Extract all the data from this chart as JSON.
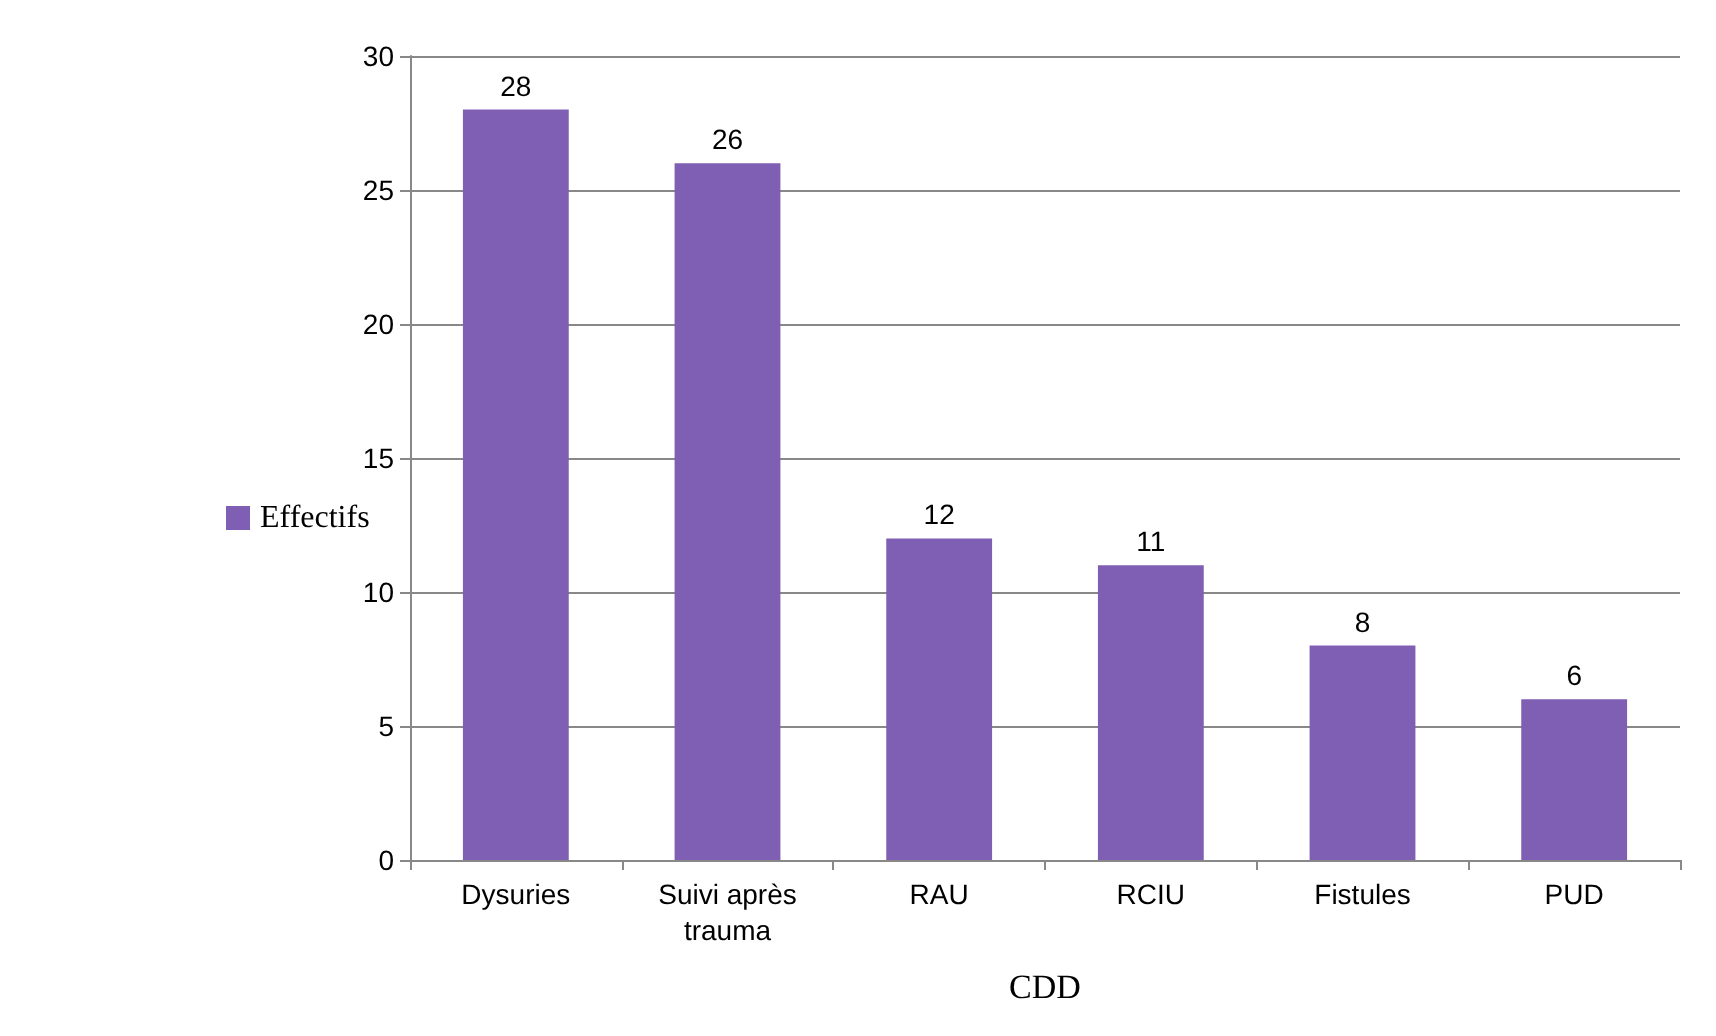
{
  "chart_data": {
    "type": "bar",
    "xlabel": "CDD",
    "categories": [
      "Dysuries",
      "Suivi après\ntrauma",
      "RAU",
      "RCIU",
      "Fistules",
      "PUD"
    ],
    "series": [
      {
        "name": "Effectifs",
        "color": "#7f5fb3",
        "values": [
          28,
          26,
          12,
          11,
          8,
          6
        ]
      }
    ],
    "ylim": [
      0,
      30
    ],
    "yticks": [
      0,
      5,
      10,
      15,
      20,
      25,
      30
    ],
    "grid": "y",
    "legend": "left",
    "data_labels": true
  }
}
